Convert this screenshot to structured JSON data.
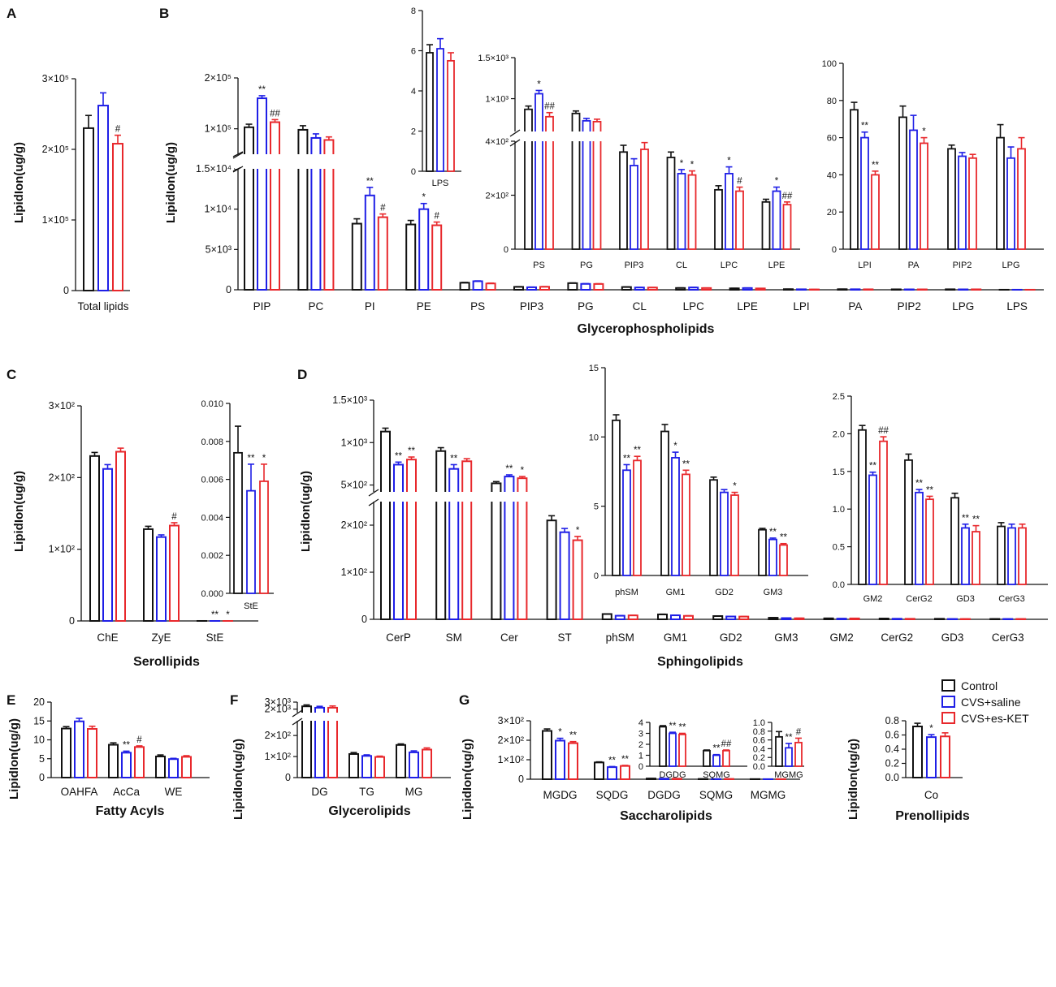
{
  "series": [
    {
      "name": "Control",
      "color": "#111111"
    },
    {
      "name": "CVS+saline",
      "color": "#1f1fe6"
    },
    {
      "name": "CVS+es-KET",
      "color": "#e8282c"
    }
  ],
  "legend": {
    "labels": [
      "Control",
      "CVS+saline",
      "CVS+es-KET"
    ]
  },
  "y_axis_label": "LipidIon(ug/g)",
  "chart_data": [
    {
      "id": "A",
      "panel_label": "A",
      "type": "bar",
      "title": "",
      "xlabel": "Total lipids",
      "ylabel": "LipidIon(ug/g)",
      "categories": [
        "Total lipids"
      ],
      "series": [
        {
          "name": "Control",
          "values": [
            230000
          ],
          "err": [
            18000
          ]
        },
        {
          "name": "CVS+saline",
          "values": [
            262000
          ],
          "err": [
            18000
          ]
        },
        {
          "name": "CVS+es-KET",
          "values": [
            208000
          ],
          "err": [
            12000
          ]
        }
      ],
      "ylim": [
        0,
        300000
      ],
      "yticks": [
        {
          "v": 0,
          "label": "0"
        },
        {
          "v": 100000,
          "label": "1×10⁵"
        },
        {
          "v": 200000,
          "label": "2×10⁵"
        },
        {
          "v": 300000,
          "label": "3×10⁵"
        }
      ],
      "sig": [
        [
          "",
          "",
          "#"
        ]
      ]
    },
    {
      "id": "B",
      "panel_label": "B",
      "type": "bar",
      "xlabel": "Glycerophospholipids",
      "ylabel": "LipidIon(ug/g)",
      "categories": [
        "PIP",
        "PC",
        "PI",
        "PE",
        "PS",
        "PIP3",
        "PG",
        "CL",
        "LPC",
        "LPE",
        "LPI",
        "PA",
        "PIP2",
        "LPG",
        "LPS"
      ],
      "series": [
        {
          "name": "Control",
          "values": [
            103000,
            98000,
            8200,
            8100,
            870,
            360,
            820,
            340,
            220,
            175,
            75,
            71,
            54,
            60,
            5.9
          ],
          "err": [
            6000,
            8000,
            600,
            500,
            40,
            25,
            30,
            20,
            15,
            10,
            4,
            6,
            2,
            7,
            0.4
          ]
        },
        {
          "name": "CVS+saline",
          "values": [
            160000,
            82000,
            11700,
            10000,
            1060,
            310,
            730,
            280,
            280,
            215,
            60,
            64,
            50,
            49,
            6.1
          ],
          "err": [
            5000,
            8000,
            1000,
            700,
            40,
            25,
            30,
            15,
            25,
            15,
            3,
            8,
            2,
            6,
            0.5
          ]
        },
        {
          "name": "CVS+es-KET",
          "values": [
            113000,
            78000,
            9000,
            8000,
            780,
            370,
            720,
            275,
            215,
            165,
            40,
            57,
            49,
            54,
            5.5
          ],
          "err": [
            5000,
            6000,
            400,
            400,
            50,
            25,
            30,
            15,
            15,
            10,
            2,
            3,
            2,
            6,
            0.4
          ]
        }
      ],
      "yaxis_broken": true,
      "ylim_lower": [
        0,
        15000
      ],
      "ylim_upper": [
        50000,
        200000
      ],
      "yticks": [
        "0",
        "5×10³",
        "1×10⁴",
        "1.5×10⁴",
        "1×10⁵",
        "2×10⁵"
      ],
      "sig": [
        [
          "",
          "**",
          "##"
        ],
        [
          "",
          "",
          ""
        ],
        [
          "",
          "**",
          "#"
        ],
        [
          "",
          "*",
          "#"
        ]
      ],
      "insets": [
        {
          "categories": [
            "LPS"
          ],
          "ylim": [
            0,
            8
          ],
          "yticks": [
            "0",
            "2",
            "4",
            "6",
            "8"
          ]
        },
        {
          "categories": [
            "PS",
            "PG",
            "PIP3",
            "CL",
            "LPC",
            "LPE"
          ],
          "yaxis_broken": true,
          "yticks": [
            "0",
            "2×10²",
            "4×10²",
            "1×10³",
            "1.5×10³"
          ],
          "sig": [
            [
              "",
              "*",
              "##"
            ],
            [
              "",
              "",
              ""
            ],
            [
              "",
              "",
              ""
            ],
            [
              "",
              "*",
              "*"
            ],
            [
              "",
              "*",
              "#"
            ],
            [
              "",
              "*",
              "##"
            ]
          ]
        },
        {
          "categories": [
            "LPI",
            "PA",
            "PIP2",
            "LPG"
          ],
          "ylim": [
            0,
            100
          ],
          "yticks": [
            "0",
            "20",
            "40",
            "60",
            "80",
            "100"
          ],
          "sig": [
            [
              "",
              "**",
              "**"
            ],
            [
              "",
              "",
              "*"
            ],
            [
              "",
              "",
              ""
            ],
            [
              "",
              "",
              ""
            ]
          ]
        }
      ]
    },
    {
      "id": "C",
      "panel_label": "C",
      "type": "bar",
      "xlabel": "Serollipids",
      "ylabel": "LipidIon(ug/g)",
      "categories": [
        "ChE",
        "ZyE",
        "StE"
      ],
      "series": [
        {
          "name": "Control",
          "values": [
            230,
            128,
            0.0074
          ],
          "err": [
            5,
            4,
            0.0014
          ]
        },
        {
          "name": "CVS+saline",
          "values": [
            212,
            117,
            0.0054
          ],
          "err": [
            6,
            3,
            0.0014
          ]
        },
        {
          "name": "CVS+es-KET",
          "values": [
            236,
            133,
            0.0059
          ],
          "err": [
            5,
            4,
            0.0009
          ]
        }
      ],
      "ylim": [
        0,
        300
      ],
      "yticks": [
        "0",
        "1×10²",
        "2×10²",
        "3×10²"
      ],
      "sig": [
        [
          "",
          "",
          ""
        ],
        [
          "",
          "",
          "#"
        ],
        [
          "",
          "**",
          "*"
        ]
      ],
      "insets": [
        {
          "categories": [
            "StE"
          ],
          "ylim": [
            0,
            0.01
          ],
          "yticks": [
            "0.000",
            "0.002",
            "0.004",
            "0.006",
            "0.008",
            "0.010"
          ]
        }
      ]
    },
    {
      "id": "D",
      "panel_label": "D",
      "type": "bar",
      "xlabel": "Sphingolipids",
      "ylabel": "LipidIon(ug/g)",
      "categories": [
        "CerP",
        "SM",
        "Cer",
        "ST",
        "phSM",
        "GM1",
        "GD2",
        "GM3",
        "GM2",
        "CerG2",
        "GD3",
        "CerG3"
      ],
      "series": [
        {
          "name": "Control",
          "values": [
            1130,
            900,
            520,
            210,
            11.2,
            10.4,
            6.9,
            3.3,
            2.05,
            1.65,
            1.15,
            0.77
          ],
          "err": [
            40,
            40,
            20,
            10,
            0.4,
            0.5,
            0.2,
            0.1,
            0.06,
            0.08,
            0.06,
            0.05
          ]
        },
        {
          "name": "CVS+saline",
          "values": [
            740,
            690,
            600,
            185,
            7.6,
            8.5,
            6.0,
            2.6,
            1.45,
            1.22,
            0.75,
            0.75
          ],
          "err": [
            30,
            50,
            20,
            8,
            0.4,
            0.4,
            0.2,
            0.1,
            0.04,
            0.04,
            0.05,
            0.05
          ]
        },
        {
          "name": "CVS+es-KET",
          "values": [
            800,
            780,
            580,
            168,
            8.3,
            7.3,
            5.8,
            2.2,
            1.9,
            1.13,
            0.7,
            0.75
          ],
          "err": [
            30,
            30,
            20,
            8,
            0.3,
            0.3,
            0.2,
            0.1,
            0.06,
            0.04,
            0.08,
            0.05
          ]
        }
      ],
      "yaxis_broken": true,
      "yticks": [
        "0",
        "1×10²",
        "2×10²",
        "5×10²",
        "1×10³",
        "1.5×10³"
      ],
      "sig": [
        [
          "",
          "**",
          "**"
        ],
        [
          "",
          "**",
          ""
        ],
        [
          "",
          "**",
          "*"
        ],
        [
          "",
          "",
          "*"
        ]
      ],
      "insets": [
        {
          "categories": [
            "phSM",
            "GM1",
            "GD2",
            "GM3"
          ],
          "ylim": [
            0,
            15
          ],
          "yticks": [
            "0",
            "5",
            "10",
            "15"
          ],
          "sig": [
            [
              "",
              "**",
              "**"
            ],
            [
              "",
              "*",
              "**"
            ],
            [
              "",
              "",
              "*"
            ],
            [
              "",
              "**",
              "**"
            ]
          ]
        },
        {
          "categories": [
            "GM2",
            "CerG2",
            "GD3",
            "CerG3"
          ],
          "ylim": [
            0,
            2.5
          ],
          "yticks": [
            "0.0",
            "0.5",
            "1.0",
            "1.5",
            "2.0",
            "2.5"
          ],
          "sig": [
            [
              "",
              "**",
              "##"
            ],
            [
              "",
              "**",
              "**"
            ],
            [
              "",
              "**",
              "**"
            ],
            [
              "",
              "",
              ""
            ]
          ]
        }
      ]
    },
    {
      "id": "E",
      "panel_label": "E",
      "type": "bar",
      "xlabel": "Fatty Acyls",
      "ylabel": "LipidIon(ug/g)",
      "categories": [
        "OAHFA",
        "AcCa",
        "WE"
      ],
      "series": [
        {
          "name": "Control",
          "values": [
            13.0,
            8.7,
            5.6
          ],
          "err": [
            0.5,
            0.5,
            0.4
          ]
        },
        {
          "name": "CVS+saline",
          "values": [
            14.9,
            6.6,
            4.9
          ],
          "err": [
            0.8,
            0.4,
            0.2
          ]
        },
        {
          "name": "CVS+es-KET",
          "values": [
            12.9,
            8.1,
            5.5
          ],
          "err": [
            0.7,
            0.3,
            0.3
          ]
        }
      ],
      "ylim": [
        0,
        20
      ],
      "yticks": [
        "0",
        "5",
        "10",
        "15",
        "20"
      ],
      "sig": [
        [
          "",
          "",
          ""
        ],
        [
          "",
          "**",
          "#"
        ],
        [
          "",
          "",
          ""
        ]
      ]
    },
    {
      "id": "F",
      "panel_label": "F",
      "type": "bar",
      "xlabel": "Glycerolipids",
      "ylabel": "LipidIon(ug/g)",
      "categories": [
        "DG",
        "TG",
        "MG"
      ],
      "series": [
        {
          "name": "Control",
          "values": [
            2400,
            112,
            155
          ],
          "err": [
            200,
            7,
            5
          ]
        },
        {
          "name": "CVS+saline",
          "values": [
            2200,
            103,
            120
          ],
          "err": [
            200,
            5,
            7
          ]
        },
        {
          "name": "CVS+es-KET",
          "values": [
            2200,
            98,
            133
          ],
          "err": [
            250,
            4,
            8
          ]
        }
      ],
      "yaxis_broken": true,
      "yticks": [
        "0",
        "1×10²",
        "2×10²",
        "2×10³",
        "3×10³"
      ],
      "sig": [
        [
          "",
          "",
          ""
        ],
        [
          "",
          "",
          ""
        ],
        [
          "",
          "",
          ""
        ]
      ]
    },
    {
      "id": "G",
      "panel_label": "G",
      "type": "bar",
      "xlabel": "Saccharolipids",
      "ylabel": "LipidIon(ug/g)",
      "categories": [
        "MGDG",
        "SQDG",
        "DGDG",
        "SQMG",
        "MGMG"
      ],
      "series": [
        {
          "name": "Control",
          "values": [
            248,
            86,
            3.6,
            1.42,
            0.67
          ],
          "err": [
            10,
            3,
            0.1,
            0.06,
            0.12
          ]
        },
        {
          "name": "CVS+saline",
          "values": [
            198,
            62,
            3.0,
            1.0,
            0.42
          ],
          "err": [
            12,
            3,
            0.1,
            0.06,
            0.1
          ]
        },
        {
          "name": "CVS+es-KET",
          "values": [
            185,
            68,
            2.9,
            1.42,
            0.54
          ],
          "err": [
            8,
            3,
            0.1,
            0.06,
            0.1
          ]
        }
      ],
      "ylim": [
        0,
        300
      ],
      "yticks": [
        "0",
        "1×10²",
        "2×10²",
        "3×10²"
      ],
      "sig": [
        [
          "",
          "*",
          "**"
        ],
        [
          "",
          "**",
          "**"
        ]
      ],
      "insets": [
        {
          "categories": [
            "DGDG",
            "SQMG"
          ],
          "ylim": [
            0,
            4
          ],
          "yticks": [
            "0",
            "1",
            "2",
            "3",
            "4"
          ],
          "sig": [
            [
              "",
              "**",
              "**"
            ],
            [
              "",
              "**",
              "##"
            ]
          ]
        },
        {
          "categories": [
            "MGMG"
          ],
          "ylim": [
            0,
            1.0
          ],
          "yticks": [
            "0.0",
            "0.2",
            "0.4",
            "0.6",
            "0.8",
            "1.0"
          ],
          "sig": [
            [
              "",
              "**",
              "#"
            ]
          ]
        }
      ]
    },
    {
      "id": "H",
      "panel_label": "",
      "type": "bar",
      "xlabel": "Prenollipids",
      "ylabel": "LipidIon(ug/g)",
      "categories": [
        "Co"
      ],
      "series": [
        {
          "name": "Control",
          "values": [
            0.72
          ],
          "err": [
            0.045
          ]
        },
        {
          "name": "CVS+saline",
          "values": [
            0.57
          ],
          "err": [
            0.035
          ]
        },
        {
          "name": "CVS+es-KET",
          "values": [
            0.58
          ],
          "err": [
            0.05
          ]
        }
      ],
      "ylim": [
        0,
        0.8
      ],
      "yticks": [
        "0.0",
        "0.2",
        "0.4",
        "0.6",
        "0.8"
      ],
      "sig": [
        [
          "",
          "*",
          ""
        ]
      ]
    }
  ]
}
